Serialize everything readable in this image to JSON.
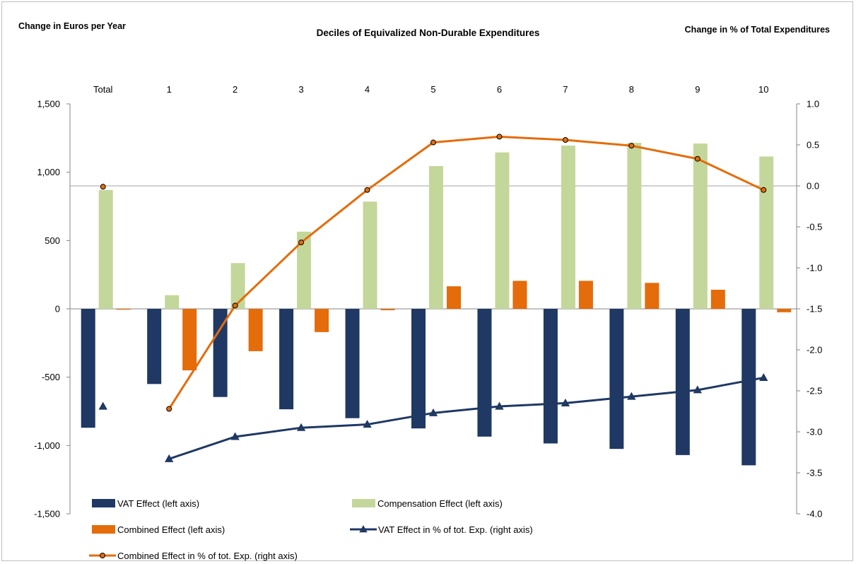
{
  "chart_data": {
    "type": "bar",
    "title": "Deciles of Equivalized Non-Durable Expenditures",
    "ylabel_left": "Change in Euros per Year",
    "ylabel_right": "Change in % of Total Expenditures",
    "categories": [
      "Total",
      "1",
      "2",
      "3",
      "4",
      "5",
      "6",
      "7",
      "8",
      "9",
      "10"
    ],
    "y_left": {
      "min": -1500,
      "max": 1500,
      "ticks": [
        -1500,
        -1000,
        -500,
        0,
        500,
        1000,
        1500
      ],
      "tick_labels": [
        "-1,500",
        "-1,000",
        "-500",
        "0",
        "500",
        "1,000",
        "1,500"
      ]
    },
    "y_right": {
      "min": -4.0,
      "max": 1.0,
      "ticks": [
        -4.0,
        -3.5,
        -3.0,
        -2.5,
        -2.0,
        -1.5,
        -1.0,
        -0.5,
        0.0,
        0.5,
        1.0
      ],
      "tick_labels": [
        "-4.0",
        "-3.5",
        "-3.0",
        "-2.5",
        "-2.0",
        "-1.5",
        "-1.0",
        "-0.5",
        "0.0",
        "0.5",
        "1.0"
      ]
    },
    "reference_line_right": 0.0,
    "series": [
      {
        "name": "VAT Effect (left axis)",
        "kind": "bar",
        "axis": "left",
        "color": "#1f3864",
        "values": [
          -870,
          -550,
          -645,
          -735,
          -800,
          -875,
          -935,
          -985,
          -1025,
          -1070,
          -1145
        ]
      },
      {
        "name": "Compensation Effect (left axis)",
        "kind": "bar",
        "axis": "left",
        "color": "#c4d79b",
        "values": [
          870,
          100,
          335,
          565,
          785,
          1045,
          1145,
          1195,
          1215,
          1210,
          1115
        ]
      },
      {
        "name": "Combined Effect (left axis)",
        "kind": "bar",
        "axis": "left",
        "color": "#e46c0a",
        "values": [
          -3,
          -450,
          -310,
          -170,
          -10,
          165,
          205,
          205,
          190,
          140,
          -25
        ]
      },
      {
        "name": "VAT Effect in % of tot. Exp. (right axis)",
        "kind": "line",
        "axis": "right",
        "color": "#1f3864",
        "marker": "triangle",
        "values": [
          -2.69,
          -3.33,
          -3.06,
          -2.95,
          -2.91,
          -2.77,
          -2.69,
          -2.65,
          -2.57,
          -2.49,
          -2.34
        ],
        "connect_from_index": 1
      },
      {
        "name": "Combined Effect in % of tot. Exp. (right axis)",
        "kind": "line",
        "axis": "right",
        "color": "#e46c0a",
        "marker": "circle",
        "marker_fill": "#e46c0a",
        "values": [
          -0.01,
          -2.72,
          -1.46,
          -0.69,
          -0.05,
          0.53,
          0.6,
          0.56,
          0.49,
          0.33,
          -0.05
        ],
        "connect_from_index": 1
      }
    ],
    "legend_position": "bottom",
    "grid": false
  }
}
